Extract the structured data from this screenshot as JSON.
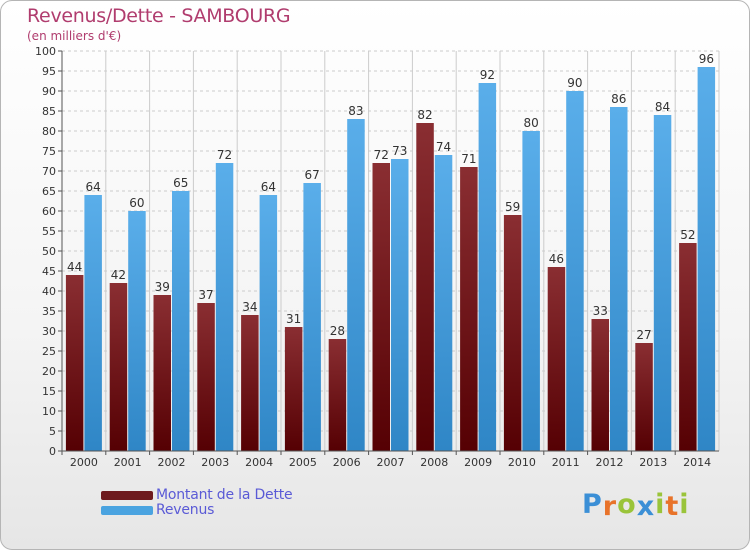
{
  "header": {
    "title": "Revenus/Dette - SAMBOURG",
    "subtitle": "(en milliers d'€)"
  },
  "legend": {
    "items": [
      {
        "label": "Montant de la Dette",
        "color": "#6e1a1e"
      },
      {
        "label": "Revenus",
        "color": "#4aa3e0"
      }
    ]
  },
  "logo": {
    "letters": [
      "P",
      "r",
      "o",
      "x",
      "i",
      "t",
      "i"
    ],
    "colors": [
      "#3b8fd6",
      "#e8732a",
      "#9ac43a",
      "#3b8fd6",
      "#9ac43a",
      "#e8732a",
      "#9ac43a"
    ]
  },
  "colors": {
    "dette_top": "#8a2e32",
    "dette_bottom": "#550003",
    "revenus_top": "#5aaeea",
    "revenus_bottom": "#2f86c6",
    "grid": "#cccccc",
    "axis": "#555555",
    "text": "#333333"
  },
  "chart_data": {
    "type": "bar",
    "title": "Revenus/Dette - SAMBOURG",
    "ylabel": "(en milliers d'€)",
    "xlabel": "",
    "ylim": [
      0,
      100
    ],
    "yticks": [
      0,
      5,
      10,
      15,
      20,
      25,
      30,
      35,
      40,
      45,
      50,
      55,
      60,
      65,
      70,
      75,
      80,
      85,
      90,
      95,
      100
    ],
    "grid": true,
    "legend_position": "bottom-left",
    "categories": [
      "2000",
      "2001",
      "2002",
      "2003",
      "2004",
      "2005",
      "2006",
      "2007",
      "2008",
      "2009",
      "2010",
      "2011",
      "2012",
      "2013",
      "2014"
    ],
    "series": [
      {
        "name": "Montant de la Dette",
        "values": [
          44,
          42,
          39,
          37,
          34,
          31,
          28,
          72,
          82,
          71,
          59,
          46,
          33,
          27,
          52
        ]
      },
      {
        "name": "Revenus",
        "values": [
          64,
          60,
          65,
          72,
          64,
          67,
          83,
          73,
          74,
          92,
          80,
          90,
          86,
          84,
          96
        ]
      }
    ]
  }
}
